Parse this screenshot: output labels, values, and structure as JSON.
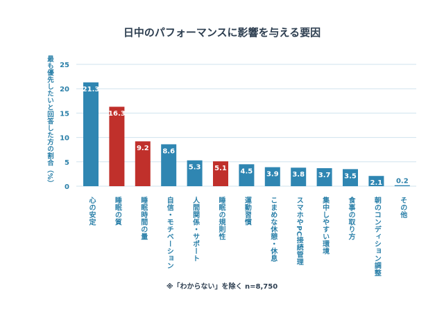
{
  "chart_data": {
    "type": "bar",
    "title": "日中のパフォーマンスに影響を与える要因",
    "ylabel": "最も優先したいと回答した方の割合（%）",
    "xlabel": "",
    "ylim": [
      0,
      25
    ],
    "yticks": [
      0,
      5,
      10,
      15,
      20,
      25
    ],
    "grid": true,
    "categories": [
      "心の安定",
      "睡眠の質",
      "睡眠時間の量",
      "自信・モチベーション",
      "人間関係・サポート",
      "睡眠の規則性",
      "運動習慣",
      "こまめな休憩・休息",
      "スマホやPC接続管理",
      "集中しやすい環境",
      "食事の取り方",
      "朝のコンディション調整",
      "その他"
    ],
    "values": [
      21.3,
      16.3,
      9.2,
      8.6,
      5.3,
      5.1,
      4.5,
      3.9,
      3.8,
      3.7,
      3.5,
      2.1,
      0.2
    ],
    "value_labels": [
      "21.3",
      "16.3",
      "9.2",
      "8.6",
      "5.3",
      "5.1",
      "4.5",
      "3.9",
      "3.8",
      "3.7",
      "3.5",
      "2.1",
      "0.2"
    ],
    "highlighted": [
      false,
      true,
      true,
      false,
      false,
      true,
      false,
      false,
      false,
      false,
      false,
      false,
      false
    ],
    "colors": {
      "default": "#2f86b2",
      "highlight": "#c0302b",
      "text": "#2a7fa8",
      "grid": "#cfe3ee"
    },
    "footnote": "※「わからない」を除く n=8,750"
  }
}
